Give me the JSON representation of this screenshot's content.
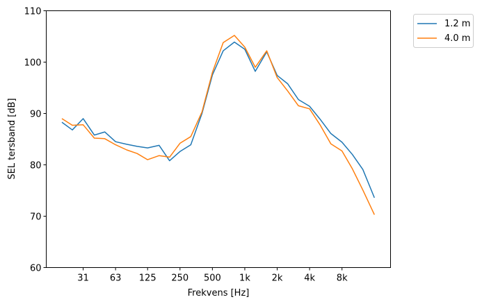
{
  "chart_data": {
    "type": "line",
    "title": "",
    "xlabel": "Frekvens [Hz]",
    "ylabel": "SEL tersband [dB]",
    "xscale": "log",
    "xlim": [
      14.3,
      22600
    ],
    "ylim": [
      60,
      110
    ],
    "grid": false,
    "legend_placement": "outside-top-right",
    "xticks": [
      31.5,
      63,
      125,
      250,
      500,
      1000,
      2000,
      4000,
      8000
    ],
    "xtick_labels": [
      "31",
      "63",
      "125",
      "250",
      "500",
      "1k",
      "2k",
      "4k",
      "8k"
    ],
    "yticks": [
      60,
      70,
      80,
      90,
      100,
      110
    ],
    "ytick_labels": [
      "60",
      "70",
      "80",
      "90",
      "100",
      "110"
    ],
    "x": [
      20,
      25,
      31.5,
      40,
      50,
      63,
      80,
      100,
      125,
      160,
      200,
      250,
      315,
      400,
      500,
      630,
      800,
      1000,
      1250,
      1600,
      2000,
      2500,
      3150,
      4000,
      5000,
      6300,
      8000,
      10000,
      12500,
      16000
    ],
    "series": [
      {
        "name": "1.2 m",
        "color": "#1f77b4",
        "values": [
          88.3,
          86.8,
          89.0,
          85.8,
          86.4,
          84.5,
          84.0,
          83.6,
          83.3,
          83.8,
          80.8,
          82.6,
          83.9,
          90.0,
          97.5,
          102.2,
          103.9,
          102.5,
          98.2,
          102.0,
          97.4,
          95.8,
          92.7,
          91.4,
          88.9,
          86.1,
          84.4,
          82.0,
          79.1,
          73.6
        ]
      },
      {
        "name": "4.0 m",
        "color": "#ff7f0e",
        "values": [
          89.0,
          87.7,
          87.8,
          85.2,
          85.1,
          83.9,
          82.9,
          82.2,
          81.0,
          81.8,
          81.5,
          84.2,
          85.5,
          90.3,
          98.0,
          103.8,
          105.2,
          102.9,
          99.0,
          102.2,
          97.0,
          94.4,
          91.5,
          90.9,
          87.8,
          84.1,
          82.7,
          79.2,
          75.1,
          70.3
        ]
      }
    ]
  }
}
